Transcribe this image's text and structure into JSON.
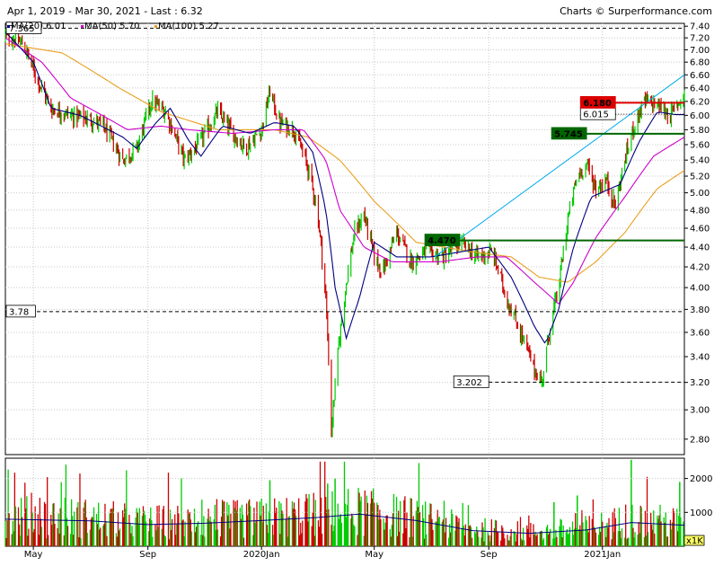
{
  "header": {
    "range_title": "Apr 1, 2019 - Mar 30, 2021 - Last : 6.32",
    "credit": "Charts © Surperformance.com"
  },
  "chart_data": [
    {
      "type": "candlestick",
      "title": "Apr 1, 2019 - Mar 30, 2021 - Last : 6.32",
      "y_scale": "log",
      "ylim": [
        2.7,
        7.45
      ],
      "y_ticks": [
        2.8,
        3.0,
        3.2,
        3.4,
        3.6,
        3.8,
        4.0,
        4.2,
        4.4,
        4.6,
        4.8,
        5.0,
        5.2,
        5.4,
        5.6,
        5.8,
        6.0,
        6.2,
        6.4,
        6.6,
        6.8,
        7.0,
        7.2,
        7.4
      ],
      "y_tick_labels": [
        "2.80",
        "3.00",
        "3.20",
        "3.40",
        "3.60",
        "3.80",
        "4.00",
        "4.20",
        "4.40",
        "4.60",
        "4.80",
        "5.00",
        "5.20",
        "5.40",
        "5.60",
        "5.80",
        "6.00",
        "6.20",
        "6.40",
        "6.60",
        "6.80",
        "7.00",
        "7.20",
        "7.40"
      ],
      "x_range": [
        "2019-04-01",
        "2021-03-30"
      ],
      "x_ticks": [
        {
          "label": "May",
          "date": "2019-05-01"
        },
        {
          "label": "Sep",
          "date": "2019-09-01"
        },
        {
          "label": "2020Jan",
          "date": "2020-01-01"
        },
        {
          "label": "May",
          "date": "2020-05-01"
        },
        {
          "label": "Sep",
          "date": "2020-09-01"
        },
        {
          "label": "2021Jan",
          "date": "2021-01-01"
        }
      ],
      "legend": [
        {
          "name": "MA(20)",
          "value": "6.01",
          "color": "#000080"
        },
        {
          "name": "MA(50)",
          "value": "5.70",
          "color": "#cc00cc"
        },
        {
          "name": "MA(100)",
          "value": "5.27",
          "color": "#e8a020"
        }
      ],
      "last": 6.32,
      "candle_colors": {
        "up": "#00cc00",
        "down": "#cc0000"
      },
      "price_path": [
        [
          "2019-04-01",
          7.25
        ],
        [
          "2019-04-20",
          7.1
        ],
        [
          "2019-05-05",
          6.55
        ],
        [
          "2019-05-20",
          6.1
        ],
        [
          "2019-06-10",
          6.0
        ],
        [
          "2019-07-01",
          5.95
        ],
        [
          "2019-07-15",
          5.85
        ],
        [
          "2019-08-05",
          5.4
        ],
        [
          "2019-08-20",
          5.55
        ],
        [
          "2019-09-05",
          6.2
        ],
        [
          "2019-09-20",
          6.05
        ],
        [
          "2019-10-10",
          5.4
        ],
        [
          "2019-10-25",
          5.6
        ],
        [
          "2019-11-15",
          6.05
        ],
        [
          "2019-12-01",
          5.75
        ],
        [
          "2019-12-15",
          5.55
        ],
        [
          "2020-01-01",
          5.8
        ],
        [
          "2020-01-10",
          6.35
        ],
        [
          "2020-01-20",
          5.9
        ],
        [
          "2020-02-05",
          5.8
        ],
        [
          "2020-02-20",
          5.3
        ],
        [
          "2020-03-01",
          4.8
        ],
        [
          "2020-03-10",
          3.9
        ],
        [
          "2020-03-16",
          2.85
        ],
        [
          "2020-03-24",
          3.5
        ],
        [
          "2020-04-01",
          4.05
        ],
        [
          "2020-04-10",
          4.55
        ],
        [
          "2020-04-20",
          4.75
        ],
        [
          "2020-05-01",
          4.3
        ],
        [
          "2020-05-10",
          4.15
        ],
        [
          "2020-05-25",
          4.55
        ],
        [
          "2020-06-10",
          4.25
        ],
        [
          "2020-06-25",
          4.35
        ],
        [
          "2020-07-15",
          4.3
        ],
        [
          "2020-08-01",
          4.45
        ],
        [
          "2020-08-20",
          4.3
        ],
        [
          "2020-09-05",
          4.35
        ],
        [
          "2020-09-20",
          3.9
        ],
        [
          "2020-10-05",
          3.6
        ],
        [
          "2020-10-20",
          3.3
        ],
        [
          "2020-10-28",
          3.2
        ],
        [
          "2020-11-05",
          3.6
        ],
        [
          "2020-11-15",
          4.0
        ],
        [
          "2020-11-25",
          4.7
        ],
        [
          "2020-12-05",
          5.2
        ],
        [
          "2020-12-15",
          5.35
        ],
        [
          "2020-12-25",
          5.05
        ],
        [
          "2021-01-05",
          5.15
        ],
        [
          "2021-01-15",
          4.85
        ],
        [
          "2021-01-25",
          5.4
        ],
        [
          "2021-02-05",
          5.9
        ],
        [
          "2021-02-15",
          6.2
        ],
        [
          "2021-03-01",
          6.15
        ],
        [
          "2021-03-15",
          6.0
        ],
        [
          "2021-03-30",
          6.32
        ]
      ],
      "lines": {
        "ma20": [
          [
            "2019-04-01",
            7.3
          ],
          [
            "2019-05-01",
            6.8
          ],
          [
            "2019-05-20",
            6.1
          ],
          [
            "2019-06-20",
            6.0
          ],
          [
            "2019-08-05",
            5.7
          ],
          [
            "2019-08-20",
            5.55
          ],
          [
            "2019-09-10",
            5.9
          ],
          [
            "2019-09-25",
            6.1
          ],
          [
            "2019-10-15",
            5.65
          ],
          [
            "2019-10-28",
            5.45
          ],
          [
            "2019-11-20",
            5.85
          ],
          [
            "2019-12-20",
            5.75
          ],
          [
            "2020-01-15",
            5.9
          ],
          [
            "2020-02-05",
            5.85
          ],
          [
            "2020-02-25",
            5.5
          ],
          [
            "2020-03-10",
            4.8
          ],
          [
            "2020-03-20",
            4.0
          ],
          [
            "2020-04-01",
            3.55
          ],
          [
            "2020-04-15",
            3.9
          ],
          [
            "2020-05-01",
            4.45
          ],
          [
            "2020-05-25",
            4.3
          ],
          [
            "2020-07-01",
            4.3
          ],
          [
            "2020-08-01",
            4.35
          ],
          [
            "2020-09-01",
            4.4
          ],
          [
            "2020-09-25",
            4.1
          ],
          [
            "2020-10-20",
            3.65
          ],
          [
            "2020-11-01",
            3.5
          ],
          [
            "2020-11-15",
            3.8
          ],
          [
            "2020-12-01",
            4.4
          ],
          [
            "2020-12-20",
            4.95
          ],
          [
            "2021-01-20",
            5.1
          ],
          [
            "2021-02-10",
            5.65
          ],
          [
            "2021-03-01",
            6.05
          ],
          [
            "2021-03-20",
            6.01
          ]
        ],
        "ma50": [
          [
            "2019-04-01",
            7.2
          ],
          [
            "2019-05-10",
            6.8
          ],
          [
            "2019-06-10",
            6.25
          ],
          [
            "2019-08-10",
            5.8
          ],
          [
            "2019-09-15",
            5.85
          ],
          [
            "2019-10-15",
            5.8
          ],
          [
            "2019-12-01",
            5.75
          ],
          [
            "2020-01-15",
            5.8
          ],
          [
            "2020-02-15",
            5.8
          ],
          [
            "2020-03-10",
            5.4
          ],
          [
            "2020-03-25",
            4.8
          ],
          [
            "2020-04-20",
            4.4
          ],
          [
            "2020-05-20",
            4.25
          ],
          [
            "2020-07-10",
            4.25
          ],
          [
            "2020-08-20",
            4.3
          ],
          [
            "2020-09-20",
            4.3
          ],
          [
            "2020-10-20",
            4.05
          ],
          [
            "2020-11-15",
            3.85
          ],
          [
            "2020-12-01",
            4.05
          ],
          [
            "2020-12-25",
            4.5
          ],
          [
            "2021-01-25",
            4.95
          ],
          [
            "2021-02-25",
            5.45
          ],
          [
            "2021-03-30",
            5.7
          ]
        ],
        "ma100": [
          [
            "2019-04-01",
            7.1
          ],
          [
            "2019-06-01",
            6.95
          ],
          [
            "2019-08-01",
            6.4
          ],
          [
            "2019-09-15",
            6.05
          ],
          [
            "2019-11-15",
            5.8
          ],
          [
            "2020-01-15",
            5.8
          ],
          [
            "2020-02-20",
            5.7
          ],
          [
            "2020-03-25",
            5.4
          ],
          [
            "2020-05-01",
            4.9
          ],
          [
            "2020-06-15",
            4.45
          ],
          [
            "2020-08-15",
            4.35
          ],
          [
            "2020-09-25",
            4.3
          ],
          [
            "2020-10-25",
            4.1
          ],
          [
            "2020-11-25",
            4.05
          ],
          [
            "2020-12-25",
            4.25
          ],
          [
            "2021-01-25",
            4.55
          ],
          [
            "2021-03-01",
            5.05
          ],
          [
            "2021-03-30",
            5.27
          ]
        ]
      },
      "trendline": {
        "from": [
          "2020-07-05",
          4.3
        ],
        "to": [
          "2021-03-30",
          6.6
        ],
        "color": "#00aaee"
      },
      "levels": [
        {
          "value": 7.365,
          "label": "7.365",
          "style": "dashed",
          "color": "#000000",
          "label_side": "left"
        },
        {
          "value": 3.78,
          "label": "3.78",
          "style": "dashed",
          "color": "#000000",
          "label_side": "left"
        },
        {
          "value": 3.202,
          "label": "3.202",
          "style": "dashed",
          "color": "#000000",
          "label_side": "mid",
          "from": "2020-09-01"
        },
        {
          "value": 6.015,
          "label": "6.015",
          "style": "dotted",
          "color": "#000000",
          "label_side": "mid",
          "from": "2021-01-15"
        },
        {
          "value": 6.18,
          "label": "6.180",
          "style": "solid",
          "color": "#dd0000",
          "label_side": "mid",
          "from": "2021-01-15"
        },
        {
          "value": 5.745,
          "label": "5.745",
          "style": "solid",
          "color": "#006600",
          "label_side": "mid",
          "from": "2020-12-15"
        },
        {
          "value": 4.47,
          "label": "4.470",
          "style": "solid",
          "color": "#006600",
          "label_side": "mid",
          "from": "2020-08-01"
        }
      ],
      "volume": {
        "unit_label": "x1K",
        "y_ticks": [
          1000,
          2000
        ],
        "y_tick_labels": [
          "1000",
          "2000"
        ],
        "ylim": [
          0,
          2600
        ],
        "avg_path": [
          [
            "2019-04-01",
            800
          ],
          [
            "2019-07-01",
            750
          ],
          [
            "2019-09-01",
            640
          ],
          [
            "2019-11-01",
            680
          ],
          [
            "2020-01-01",
            760
          ],
          [
            "2020-03-01",
            850
          ],
          [
            "2020-04-15",
            950
          ],
          [
            "2020-06-15",
            760
          ],
          [
            "2020-08-15",
            460
          ],
          [
            "2020-10-15",
            380
          ],
          [
            "2020-12-15",
            480
          ],
          [
            "2021-02-01",
            700
          ],
          [
            "2021-03-30",
            620
          ]
        ],
        "spikes": [
          [
            "2020-01-10",
            1950
          ],
          [
            "2020-03-12",
            1850
          ],
          [
            "2020-03-20",
            2000
          ],
          [
            "2020-11-10",
            1300
          ],
          [
            "2020-12-05",
            1500
          ],
          [
            "2021-02-01",
            2550
          ],
          [
            "2021-03-25",
            1900
          ]
        ],
        "avg_color": "#000080"
      }
    }
  ]
}
